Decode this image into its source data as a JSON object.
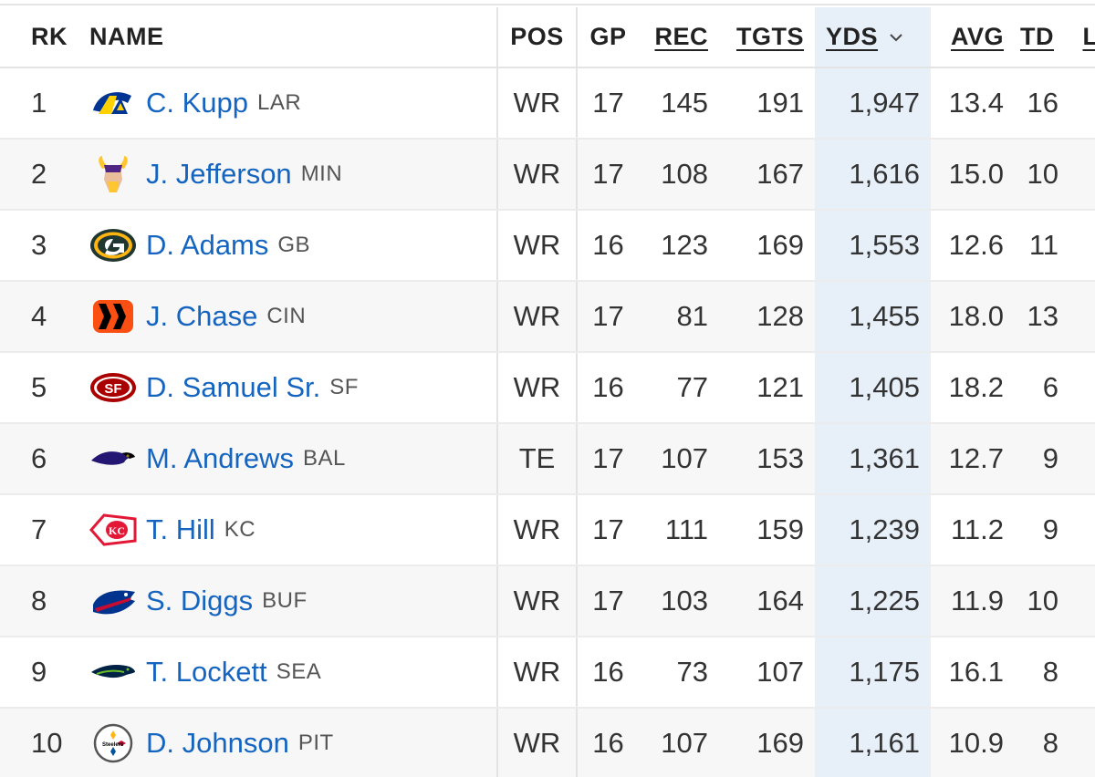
{
  "headers": {
    "rk": "RK",
    "name": "NAME",
    "pos": "POS",
    "gp": "GP",
    "rec": "REC",
    "tgts": "TGTS",
    "yds": "YDS",
    "avg": "AVG",
    "td": "TD",
    "extra": "L"
  },
  "sort_icon": "chevron-down-icon",
  "rows": [
    {
      "rk": "1",
      "name": "C. Kupp",
      "team": "LAR",
      "pos": "WR",
      "gp": "17",
      "rec": "145",
      "tgts": "191",
      "yds": "1,947",
      "avg": "13.4",
      "td": "16",
      "logo": "rams-logo"
    },
    {
      "rk": "2",
      "name": "J. Jefferson",
      "team": "MIN",
      "pos": "WR",
      "gp": "17",
      "rec": "108",
      "tgts": "167",
      "yds": "1,616",
      "avg": "15.0",
      "td": "10",
      "logo": "vikings-logo"
    },
    {
      "rk": "3",
      "name": "D. Adams",
      "team": "GB",
      "pos": "WR",
      "gp": "16",
      "rec": "123",
      "tgts": "169",
      "yds": "1,553",
      "avg": "12.6",
      "td": "11",
      "logo": "packers-logo"
    },
    {
      "rk": "4",
      "name": "J. Chase",
      "team": "CIN",
      "pos": "WR",
      "gp": "17",
      "rec": "81",
      "tgts": "128",
      "yds": "1,455",
      "avg": "18.0",
      "td": "13",
      "logo": "bengals-logo"
    },
    {
      "rk": "5",
      "name": "D. Samuel Sr.",
      "team": "SF",
      "pos": "WR",
      "gp": "16",
      "rec": "77",
      "tgts": "121",
      "yds": "1,405",
      "avg": "18.2",
      "td": "6",
      "logo": "49ers-logo"
    },
    {
      "rk": "6",
      "name": "M. Andrews",
      "team": "BAL",
      "pos": "TE",
      "gp": "17",
      "rec": "107",
      "tgts": "153",
      "yds": "1,361",
      "avg": "12.7",
      "td": "9",
      "logo": "ravens-logo"
    },
    {
      "rk": "7",
      "name": "T. Hill",
      "team": "KC",
      "pos": "WR",
      "gp": "17",
      "rec": "111",
      "tgts": "159",
      "yds": "1,239",
      "avg": "11.2",
      "td": "9",
      "logo": "chiefs-logo"
    },
    {
      "rk": "8",
      "name": "S. Diggs",
      "team": "BUF",
      "pos": "WR",
      "gp": "17",
      "rec": "103",
      "tgts": "164",
      "yds": "1,225",
      "avg": "11.9",
      "td": "10",
      "logo": "bills-logo"
    },
    {
      "rk": "9",
      "name": "T. Lockett",
      "team": "SEA",
      "pos": "WR",
      "gp": "16",
      "rec": "73",
      "tgts": "107",
      "yds": "1,175",
      "avg": "16.1",
      "td": "8",
      "logo": "seahawks-logo"
    },
    {
      "rk": "10",
      "name": "D. Johnson",
      "team": "PIT",
      "pos": "WR",
      "gp": "16",
      "rec": "107",
      "tgts": "169",
      "yds": "1,161",
      "avg": "10.9",
      "td": "8",
      "logo": "steelers-logo"
    }
  ],
  "colors": {
    "link": "#1565c0",
    "sorted_col": "#e7eff8",
    "alt_row": "#f7f7f7"
  }
}
